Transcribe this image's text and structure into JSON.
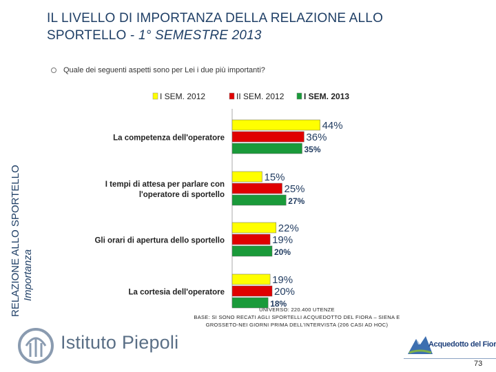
{
  "title": {
    "line1": "IL LIVELLO DI IMPORTANZA DELLA RELAZIONE ALLO",
    "line2_prefix": "SPORTELLO - ",
    "line2_italic": "1° SEMESTRE 2013"
  },
  "side_label": {
    "line1": "RELAZIONE ALLO SPORTELLO",
    "line2": "Importanza"
  },
  "question": "Quale dei seguenti aspetti sono  per Lei i due più importanti?",
  "colors": {
    "yellow": "#ffff00",
    "red": "#e00000",
    "green": "#1a9a3a"
  },
  "chart_data": {
    "type": "bar",
    "orientation": "horizontal",
    "categories": [
      "La competenza dell'operatore",
      "I tempi di attesa per parlare con l'operatore di sportello",
      "Gli orari di apertura dello sportello",
      "La cortesia dell'operatore"
    ],
    "category_lines": [
      [
        "La competenza dell'operatore"
      ],
      [
        "I tempi di attesa per parlare con",
        "l'operatore di sportello"
      ],
      [
        "Gli orari di apertura dello sportello"
      ],
      [
        "La cortesia dell'operatore"
      ]
    ],
    "series": [
      {
        "name": "I SEM. 2012",
        "values": [
          44,
          15,
          22,
          19
        ],
        "labels": [
          "44%",
          "15%",
          "22%",
          "19%"
        ],
        "bold": false
      },
      {
        "name": "II SEM. 2012",
        "values": [
          36,
          25,
          19,
          20
        ],
        "labels": [
          "36%",
          "25%",
          "19%",
          "20%"
        ],
        "bold": false
      },
      {
        "name": "I SEM. 2013",
        "values": [
          35,
          27,
          20,
          18
        ],
        "labels": [
          "35%",
          "27%",
          "20%",
          "18%"
        ],
        "bold": true
      }
    ],
    "unit": "%",
    "xlim": [
      0,
      100
    ],
    "legend": "top"
  },
  "universe": {
    "line1": "UNIVERSO: 220.400 UTENZE",
    "line2": "BASE: SI SONO RECATI AGLI SPORTELLI ACQUEDOTTO DEL FIORA – SIENA E",
    "line3": "GROSSETO-NEI GIORNI PRIMA DELL'INTERVISTA (206 CASI AD HOC)"
  },
  "logo_text": "Istituto Piepoli",
  "partner_logo_text": "Acquedotto del Fiora",
  "page_number": "73"
}
